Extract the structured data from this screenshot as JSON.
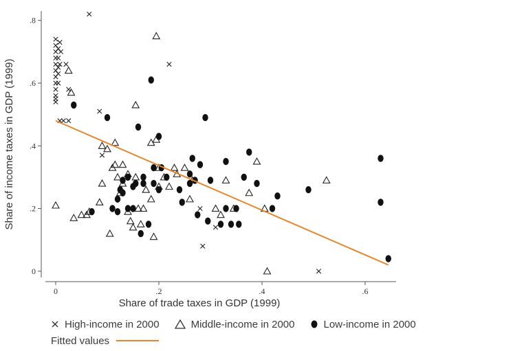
{
  "chart_data": {
    "type": "scatter",
    "xlabel": "Share of trade taxes in GDP (1999)",
    "ylabel": "Share of income taxes in GDP (1999)",
    "xlim": [
      -0.02,
      0.66
    ],
    "ylim": [
      -0.02,
      0.83
    ],
    "x_ticks": [
      0,
      0.2,
      0.4,
      0.6
    ],
    "x_tick_labels": [
      "0",
      ".2",
      ".4",
      ".6"
    ],
    "y_ticks": [
      0,
      0.2,
      0.4,
      0.6,
      0.8
    ],
    "y_tick_labels": [
      "0",
      ".2",
      ".4",
      ".6",
      ".8"
    ],
    "grid": false,
    "legend_position": "bottom",
    "colors": {
      "markers": "#222222",
      "fitted": "#e8862a",
      "axis": "#555555"
    },
    "series": [
      {
        "name": "High-income in 2000",
        "marker": "x",
        "points": [
          [
            0.0,
            0.74
          ],
          [
            0.0,
            0.72
          ],
          [
            0.0,
            0.7
          ],
          [
            0.0,
            0.68
          ],
          [
            0.0,
            0.66
          ],
          [
            0.0,
            0.64
          ],
          [
            0.0,
            0.62
          ],
          [
            0.0,
            0.6
          ],
          [
            0.0,
            0.58
          ],
          [
            0.0,
            0.56
          ],
          [
            0.0,
            0.55
          ],
          [
            0.0,
            0.54
          ],
          [
            0.005,
            0.71
          ],
          [
            0.005,
            0.68
          ],
          [
            0.005,
            0.65
          ],
          [
            0.005,
            0.63
          ],
          [
            0.005,
            0.6
          ],
          [
            0.008,
            0.73
          ],
          [
            0.008,
            0.66
          ],
          [
            0.008,
            0.48
          ],
          [
            0.01,
            0.7
          ],
          [
            0.015,
            0.48
          ],
          [
            0.02,
            0.66
          ],
          [
            0.025,
            0.58
          ],
          [
            0.025,
            0.48
          ],
          [
            0.065,
            0.82
          ],
          [
            0.085,
            0.51
          ],
          [
            0.09,
            0.37
          ],
          [
            0.22,
            0.66
          ],
          [
            0.28,
            0.2
          ],
          [
            0.285,
            0.08
          ],
          [
            0.31,
            0.14
          ],
          [
            0.51,
            0.0
          ]
        ]
      },
      {
        "name": "Middle-income in 2000",
        "marker": "triangle",
        "points": [
          [
            0.0,
            0.21
          ],
          [
            0.025,
            0.64
          ],
          [
            0.03,
            0.57
          ],
          [
            0.035,
            0.17
          ],
          [
            0.05,
            0.18
          ],
          [
            0.06,
            0.18
          ],
          [
            0.065,
            0.19
          ],
          [
            0.085,
            0.22
          ],
          [
            0.09,
            0.4
          ],
          [
            0.09,
            0.28
          ],
          [
            0.1,
            0.39
          ],
          [
            0.105,
            0.12
          ],
          [
            0.11,
            0.33
          ],
          [
            0.115,
            0.34
          ],
          [
            0.115,
            0.41
          ],
          [
            0.12,
            0.3
          ],
          [
            0.125,
            0.25
          ],
          [
            0.13,
            0.28
          ],
          [
            0.13,
            0.34
          ],
          [
            0.14,
            0.31
          ],
          [
            0.14,
            0.19
          ],
          [
            0.145,
            0.16
          ],
          [
            0.15,
            0.14
          ],
          [
            0.155,
            0.53
          ],
          [
            0.155,
            0.3
          ],
          [
            0.16,
            0.2
          ],
          [
            0.165,
            0.15
          ],
          [
            0.17,
            0.2
          ],
          [
            0.175,
            0.26
          ],
          [
            0.185,
            0.23
          ],
          [
            0.185,
            0.41
          ],
          [
            0.19,
            0.11
          ],
          [
            0.195,
            0.75
          ],
          [
            0.195,
            0.42
          ],
          [
            0.2,
            0.33
          ],
          [
            0.2,
            0.27
          ],
          [
            0.21,
            0.3
          ],
          [
            0.22,
            0.27
          ],
          [
            0.23,
            0.33
          ],
          [
            0.235,
            0.31
          ],
          [
            0.25,
            0.33
          ],
          [
            0.26,
            0.23
          ],
          [
            0.265,
            0.29
          ],
          [
            0.31,
            0.2
          ],
          [
            0.32,
            0.18
          ],
          [
            0.33,
            0.29
          ],
          [
            0.345,
            0.2
          ],
          [
            0.375,
            0.25
          ],
          [
            0.39,
            0.35
          ],
          [
            0.405,
            0.2
          ],
          [
            0.41,
            0.0
          ],
          [
            0.525,
            0.29
          ]
        ]
      },
      {
        "name": "Low-income in 2000",
        "marker": "dot",
        "points": [
          [
            0.035,
            0.53
          ],
          [
            0.07,
            0.19
          ],
          [
            0.1,
            0.49
          ],
          [
            0.11,
            0.2
          ],
          [
            0.12,
            0.19
          ],
          [
            0.12,
            0.23
          ],
          [
            0.125,
            0.26
          ],
          [
            0.13,
            0.25
          ],
          [
            0.13,
            0.29
          ],
          [
            0.14,
            0.2
          ],
          [
            0.14,
            0.3
          ],
          [
            0.15,
            0.2
          ],
          [
            0.15,
            0.27
          ],
          [
            0.155,
            0.28
          ],
          [
            0.16,
            0.46
          ],
          [
            0.165,
            0.12
          ],
          [
            0.17,
            0.28
          ],
          [
            0.17,
            0.3
          ],
          [
            0.18,
            0.15
          ],
          [
            0.185,
            0.61
          ],
          [
            0.19,
            0.33
          ],
          [
            0.19,
            0.28
          ],
          [
            0.2,
            0.26
          ],
          [
            0.2,
            0.43
          ],
          [
            0.205,
            0.33
          ],
          [
            0.215,
            0.3
          ],
          [
            0.24,
            0.26
          ],
          [
            0.245,
            0.22
          ],
          [
            0.26,
            0.28
          ],
          [
            0.26,
            0.31
          ],
          [
            0.265,
            0.36
          ],
          [
            0.27,
            0.29
          ],
          [
            0.275,
            0.18
          ],
          [
            0.28,
            0.34
          ],
          [
            0.29,
            0.49
          ],
          [
            0.295,
            0.16
          ],
          [
            0.3,
            0.29
          ],
          [
            0.32,
            0.15
          ],
          [
            0.33,
            0.35
          ],
          [
            0.33,
            0.2
          ],
          [
            0.34,
            0.15
          ],
          [
            0.35,
            0.2
          ],
          [
            0.355,
            0.15
          ],
          [
            0.365,
            0.3
          ],
          [
            0.375,
            0.38
          ],
          [
            0.39,
            0.28
          ],
          [
            0.42,
            0.2
          ],
          [
            0.43,
            0.24
          ],
          [
            0.49,
            0.26
          ],
          [
            0.63,
            0.36
          ],
          [
            0.63,
            0.22
          ],
          [
            0.645,
            0.04
          ]
        ]
      }
    ],
    "fitted": {
      "name": "Fitted values",
      "points": [
        [
          0.0,
          0.48
        ],
        [
          0.645,
          0.02
        ]
      ]
    }
  }
}
